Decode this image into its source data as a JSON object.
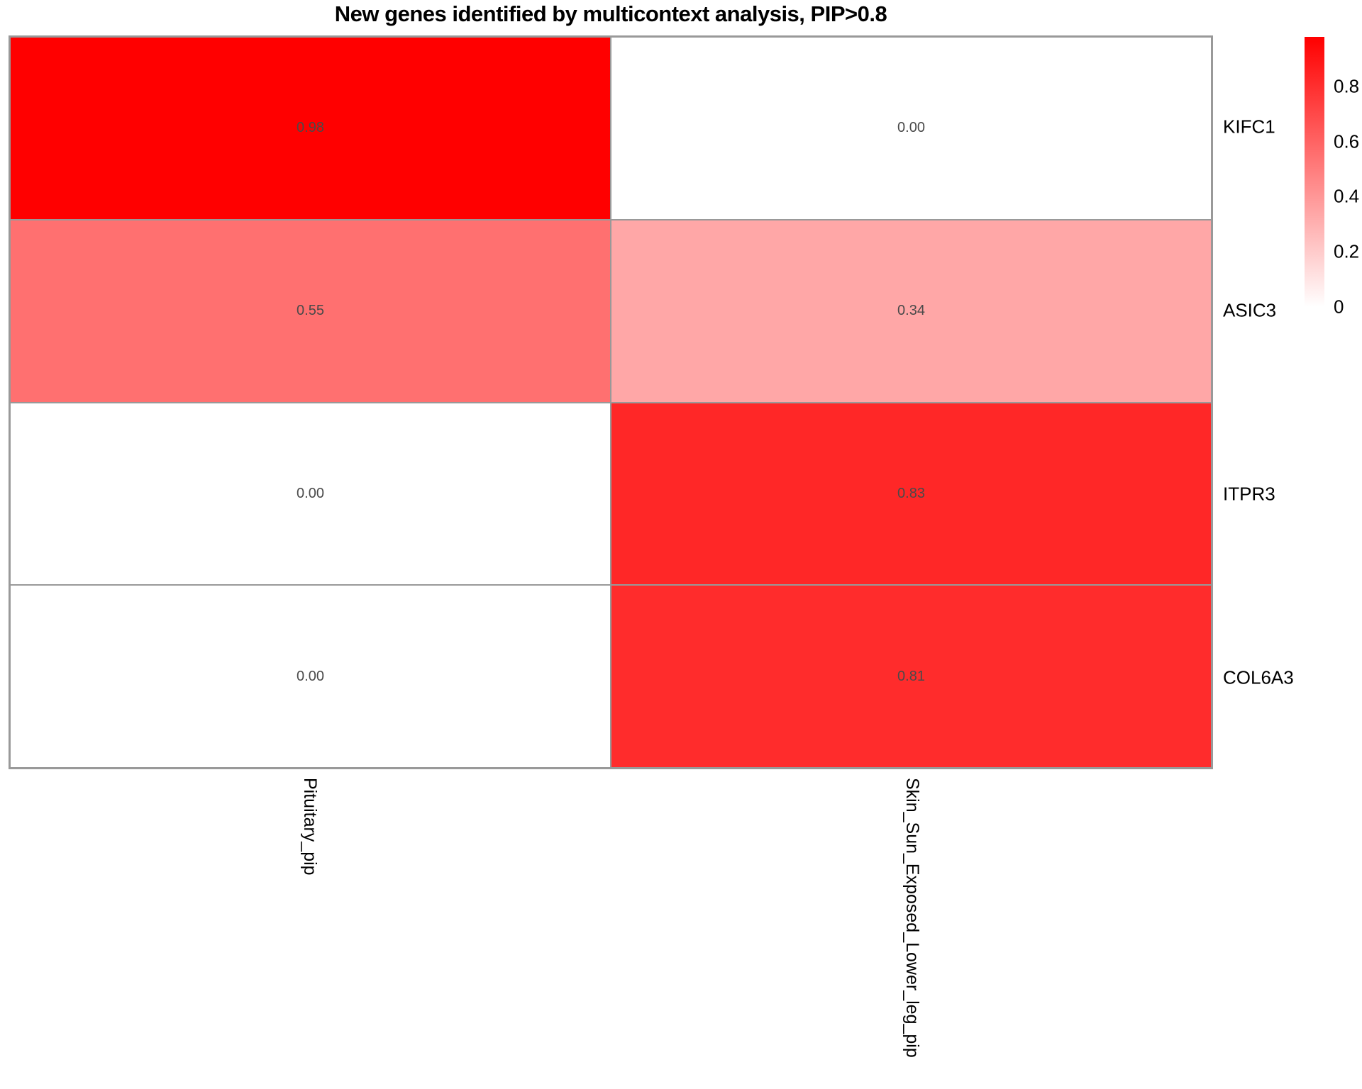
{
  "title": "New genes identified by multicontext analysis, PIP>0.8",
  "chart_data": {
    "type": "heatmap",
    "title": "New genes identified by multicontext analysis, PIP>0.8",
    "rows": [
      "KIFC1",
      "ASIC3",
      "ITPR3",
      "COL6A3"
    ],
    "columns": [
      "Pituitary_pip",
      "Skin_Sun_Exposed_Lower_leg_pip"
    ],
    "values": [
      [
        0.98,
        0.0
      ],
      [
        0.55,
        0.34
      ],
      [
        0.0,
        0.83
      ],
      [
        0.0,
        0.81
      ]
    ],
    "value_labels": [
      [
        "0.98",
        "0.00"
      ],
      [
        "0.55",
        "0.34"
      ],
      [
        "0.00",
        "0.83"
      ],
      [
        "0.00",
        "0.81"
      ]
    ],
    "color_scale": {
      "min": 0,
      "max": 0.98,
      "min_color": "#FFFFFF",
      "max_color": "#FF0000"
    },
    "legend": {
      "position": "right",
      "tick_labels": [
        "0.8",
        "0.6",
        "0.4",
        "0.2",
        "0"
      ],
      "tick_values": [
        0.8,
        0.6,
        0.4,
        0.2,
        0
      ]
    },
    "grid_border_color": "#999999",
    "number_color": "#4a4a4a",
    "background": "#ffffff"
  }
}
